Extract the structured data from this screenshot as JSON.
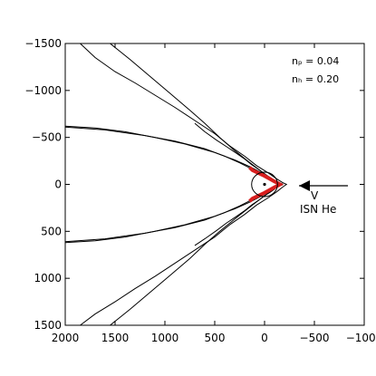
{
  "chart_data": {
    "type": "line",
    "title": "",
    "xlabel": "",
    "ylabel": "",
    "xlim": [
      2000,
      -1000
    ],
    "ylim": [
      -1500,
      1500
    ],
    "x_ticks": [
      2000,
      1500,
      1000,
      500,
      0,
      -500,
      -1000
    ],
    "x_tick_labels": [
      "2000",
      "1500",
      "1000",
      "500",
      "0",
      "−500",
      "−1000"
    ],
    "y_ticks": [
      -1500,
      -1000,
      -500,
      0,
      500,
      1000,
      1500
    ],
    "y_tick_labels": [
      "−1500",
      "−1000",
      "−500",
      "0",
      "500",
      "1000",
      "1500"
    ],
    "grid": false,
    "annotations": {
      "np_label": "nₚ = 0.04",
      "nh_label": "nₕ = 0.20",
      "arrow_label_v": "V",
      "arrow_label_isn": "ISN He"
    },
    "colors": {
      "line": "#000000",
      "highlight": "#d81e1e"
    },
    "series": [
      {
        "x": [
          2000,
          1700,
          1400,
          1100,
          800,
          500,
          300,
          150,
          60,
          -20,
          -100,
          -150,
          -180,
          -180,
          -150,
          -100,
          -20,
          60,
          150,
          300,
          500,
          800,
          1100,
          1400,
          1700,
          2000
        ],
        "y": [
          -620,
          -600,
          -560,
          -500,
          -430,
          -340,
          -260,
          -190,
          -140,
          -95,
          -45,
          -15,
          -5,
          5,
          15,
          45,
          95,
          140,
          190,
          260,
          340,
          430,
          500,
          560,
          600,
          620
        ]
      },
      {
        "x": [
          2000,
          1600,
          1200,
          900,
          600,
          400,
          250,
          120,
          20,
          -70,
          -130,
          -160,
          -160,
          -130,
          -70,
          20,
          120,
          250,
          400,
          600,
          900,
          1200,
          1600,
          2000
        ],
        "y": [
          -610,
          -580,
          -520,
          -460,
          -380,
          -300,
          -230,
          -160,
          -110,
          -60,
          -20,
          -5,
          5,
          20,
          60,
          110,
          160,
          230,
          300,
          380,
          460,
          520,
          580,
          610
        ]
      },
      {
        "x": [
          1850,
          1700,
          1500,
          1300,
          1100,
          900,
          700,
          500,
          350,
          200,
          80,
          -40,
          -120,
          -180,
          -220,
          -180,
          -120,
          -40,
          80,
          200,
          350,
          500,
          700,
          900,
          1100,
          1300,
          1500,
          1700,
          1850
        ],
        "y": [
          -1500,
          -1350,
          -1200,
          -1080,
          -950,
          -820,
          -680,
          -540,
          -410,
          -300,
          -200,
          -120,
          -60,
          -20,
          0,
          30,
          80,
          140,
          220,
          320,
          430,
          560,
          700,
          840,
          980,
          1110,
          1250,
          1380,
          1500
        ]
      },
      {
        "x": [
          1550,
          1350,
          1150,
          950,
          750,
          600,
          450,
          300,
          170,
          60,
          -30,
          -100,
          -140,
          -100,
          -30,
          60,
          170,
          300,
          450,
          600,
          750,
          950,
          1150,
          1350,
          1550
        ],
        "y": [
          -1500,
          -1330,
          -1150,
          -970,
          -790,
          -650,
          -500,
          -360,
          -250,
          -160,
          -90,
          -40,
          0,
          50,
          100,
          170,
          260,
          370,
          500,
          640,
          790,
          970,
          1150,
          1330,
          1500
        ]
      },
      {
        "x": [
          700,
          600,
          480,
          380,
          280,
          200,
          130,
          60,
          0,
          -60,
          -110,
          -150,
          -110,
          -60,
          0,
          60,
          130,
          200,
          280,
          380,
          480,
          600,
          700
        ],
        "y": [
          -650,
          -560,
          -470,
          -400,
          -330,
          -270,
          -210,
          -160,
          -110,
          -70,
          -35,
          0,
          40,
          80,
          120,
          170,
          220,
          280,
          340,
          410,
          490,
          580,
          650
        ]
      },
      {
        "x": [
          150,
          120,
          60,
          0,
          -50,
          -100,
          -140,
          -155,
          -140,
          -100,
          -50,
          0,
          60,
          120,
          150
        ],
        "y": [
          -180,
          -150,
          -120,
          -90,
          -60,
          -30,
          -10,
          0,
          10,
          30,
          60,
          90,
          120,
          150,
          180
        ],
        "style": "highlight"
      }
    ],
    "circle": {
      "cx": 0,
      "cy": 0,
      "r": 130,
      "dot_r": 12
    }
  }
}
